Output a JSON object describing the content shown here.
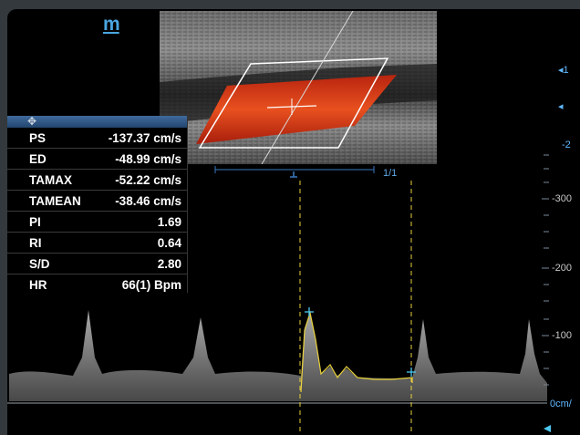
{
  "logo": {
    "text": "m"
  },
  "page_indicator": "1/1",
  "depth_markers": [
    {
      "label": "1",
      "arrow": "◂"
    },
    {
      "label": "",
      "arrow": "◂"
    },
    {
      "label": "-2",
      "arrow": ""
    }
  ],
  "velocity_scale": {
    "unit_label": "0cm/",
    "ticks": [
      "-300",
      "-200",
      "-100"
    ]
  },
  "measurements": [
    {
      "name": "PS",
      "value": "-137.37 cm/s"
    },
    {
      "name": "ED",
      "value": "-48.99 cm/s"
    },
    {
      "name": "TAMAX",
      "value": "-52.22 cm/s"
    },
    {
      "name": "TAMEAN",
      "value": "-38.46 cm/s"
    },
    {
      "name": "PI",
      "value": "1.69"
    },
    {
      "name": "RI",
      "value": "0.64"
    },
    {
      "name": "S/D",
      "value": "2.80"
    },
    {
      "name": "HR",
      "value": "66(1) Bpm"
    }
  ],
  "icons": {
    "measurement_panel": "move-cursor-icon",
    "scale_arrow": "triangle-left-icon"
  },
  "colors": {
    "doppler_flow": "#d9381e",
    "caliper": "#e8d13a",
    "marker": "#4cc8f0",
    "scale": "#5fb8ff",
    "panel_header": "#3f6a9c"
  }
}
